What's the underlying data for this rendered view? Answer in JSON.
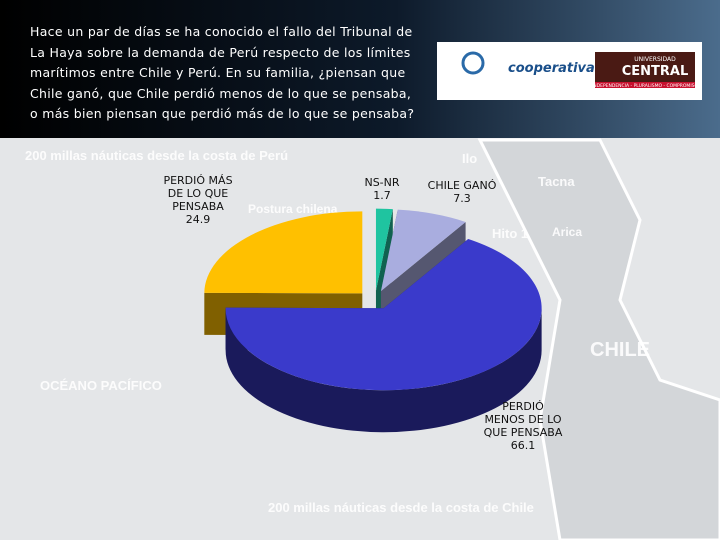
{
  "chart_data": {
    "type": "pie",
    "title": "Hace un par de días se ha conocido el fallo del Tribunal de La Haya sobre la demanda de Perú respecto de los límites marítimos entre Chile y Perú. En su familia, ¿piensan que Chile ganó, que Chile perdió menos de lo que se pensaba, o más bien piensan que perdió más de lo que se pensaba?",
    "categories": [
      "NS-NR",
      "CHILE GANÓ",
      "PERDIÓ MENOS DE LO QUE PENSABA",
      "PERDIÓ MÁS DE LO QUE PENSABA"
    ],
    "values": [
      1.7,
      7.3,
      66.1,
      24.9
    ],
    "colors": [
      "#1fc4a0",
      "#a9addf",
      "#3a3acb",
      "#ffc000"
    ]
  },
  "logos": {
    "radio": "cooperativa",
    "university_small": "UNIVERSIDAD",
    "university": "CENTRAL",
    "motto": "INDEPENDENCIA - PLURALISMO - COMPROMISO"
  },
  "map_labels": [
    "200 millas náuticas desde la costa de Perú",
    "Postura chilena",
    "Ilo",
    "Tacna",
    "Hito 1",
    "Arica",
    "CHILE",
    "OCÉANO PACÍFICO",
    "200 millas náuticas desde la costa de Chile"
  ]
}
